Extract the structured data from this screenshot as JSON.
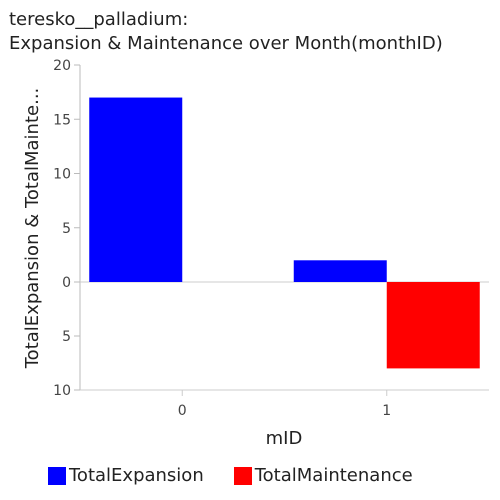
{
  "chart_data": {
    "type": "bar",
    "title_line1": "teresko__palladium:",
    "title_line2": "Expansion & Maintenance over Month(monthID)",
    "xlabel": "mID",
    "ylabel": "TotalExpansion & TotalMainte...",
    "categories": [
      "0",
      "1"
    ],
    "series": [
      {
        "name": "TotalExpansion",
        "color": "#0000ff",
        "values": [
          17,
          2
        ],
        "direction": "up"
      },
      {
        "name": "TotalMaintenance",
        "color": "#ff0000",
        "values": [
          0,
          8
        ],
        "direction": "down"
      }
    ],
    "y_ticks": [
      {
        "label": "20",
        "value": 20
      },
      {
        "label": "15",
        "value": 15
      },
      {
        "label": "10",
        "value": 10
      },
      {
        "label": "5",
        "value": 5
      },
      {
        "label": "0",
        "value": 0
      },
      {
        "label": "5",
        "value": -5
      },
      {
        "label": "10",
        "value": -10
      }
    ],
    "ylim": [
      -10,
      20
    ],
    "grid": false,
    "legend_position": "bottom"
  }
}
